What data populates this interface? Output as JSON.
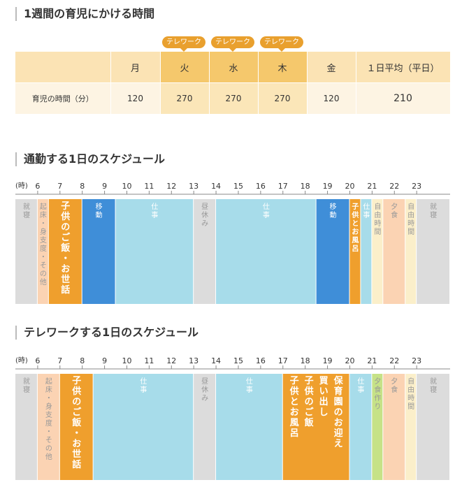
{
  "section1": {
    "title": "1週間の育児にかける時間"
  },
  "weekly_table": {
    "badge_label": "テレワーク",
    "days": [
      {
        "label": "月",
        "telework": false,
        "minutes": 120
      },
      {
        "label": "火",
        "telework": true,
        "minutes": 270
      },
      {
        "label": "水",
        "telework": true,
        "minutes": 270
      },
      {
        "label": "木",
        "telework": true,
        "minutes": 270
      },
      {
        "label": "金",
        "telework": false,
        "minutes": 120
      }
    ],
    "average_label": "１日平均（平日）",
    "average_value": 210,
    "row_label": "育児の時間（分）"
  },
  "colors": {
    "sleep": "#dcdcdc",
    "morning": "#fbd3b3",
    "childcare": "#ef9f2d",
    "commute": "#3f8ed8",
    "work": "#a7dcea",
    "lunch": "#dcdcdc",
    "free": "#fbefca",
    "dinner": "#fbd3b3",
    "cooking": "#c6e287",
    "text_light": "#999999",
    "text_dark": "#ffffff"
  },
  "chart_data": [
    {
      "type": "timeline",
      "title": "通勤する1日のスケジュール",
      "unit_label": "(時)",
      "hour_ticks": [
        6,
        7,
        8,
        9,
        10,
        11,
        12,
        13,
        14,
        15,
        16,
        17,
        18,
        19,
        20,
        21,
        22,
        23
      ],
      "blocks": [
        {
          "start": 5.0,
          "end": 6.0,
          "label": "就寝",
          "category": "sleep"
        },
        {
          "start": 6.0,
          "end": 6.5,
          "label": "起床・身支度・その他",
          "category": "morning"
        },
        {
          "start": 6.5,
          "end": 8.0,
          "label": "子供のご飯・お世話",
          "category": "childcare"
        },
        {
          "start": 8.0,
          "end": 9.5,
          "label": "移動",
          "category": "commute"
        },
        {
          "start": 9.5,
          "end": 13.0,
          "label": "仕事",
          "category": "work"
        },
        {
          "start": 13.0,
          "end": 14.0,
          "label": "昼休み",
          "category": "lunch"
        },
        {
          "start": 14.0,
          "end": 18.5,
          "label": "仕事",
          "category": "work"
        },
        {
          "start": 18.5,
          "end": 20.0,
          "label": "移動",
          "category": "commute"
        },
        {
          "start": 20.0,
          "end": 20.5,
          "label": "子供とお風呂",
          "category": "childcare"
        },
        {
          "start": 20.5,
          "end": 21.0,
          "label": "仕事",
          "category": "work"
        },
        {
          "start": 21.0,
          "end": 21.5,
          "label": "自由時間",
          "category": "free"
        },
        {
          "start": 21.5,
          "end": 22.5,
          "label": "夕食",
          "category": "dinner"
        },
        {
          "start": 22.5,
          "end": 23.0,
          "label": "自由時間",
          "category": "free"
        },
        {
          "start": 23.0,
          "end": 24.5,
          "label": "就寝",
          "category": "sleep"
        }
      ]
    },
    {
      "type": "timeline",
      "title": "テレワークする1日のスケジュール",
      "unit_label": "(時)",
      "hour_ticks": [
        6,
        7,
        8,
        9,
        10,
        11,
        12,
        13,
        14,
        15,
        16,
        17,
        18,
        19,
        20,
        21,
        22,
        23
      ],
      "blocks": [
        {
          "start": 5.0,
          "end": 6.0,
          "label": "就寝",
          "category": "sleep"
        },
        {
          "start": 6.0,
          "end": 7.0,
          "label": "起床・身支度・その他",
          "category": "morning"
        },
        {
          "start": 7.0,
          "end": 8.5,
          "label": "子供のご飯・お世話",
          "category": "childcare"
        },
        {
          "start": 8.5,
          "end": 13.0,
          "label": "仕事",
          "category": "work"
        },
        {
          "start": 13.0,
          "end": 14.0,
          "label": "昼休み",
          "category": "lunch"
        },
        {
          "start": 14.0,
          "end": 17.0,
          "label": "仕事",
          "category": "work"
        },
        {
          "start": 17.0,
          "end": 20.0,
          "label": "保育園のお迎え|買い出し|子供のご飯|子供とお風呂",
          "category": "childcare"
        },
        {
          "start": 20.0,
          "end": 21.0,
          "label": "仕事",
          "category": "work"
        },
        {
          "start": 21.0,
          "end": 21.5,
          "label": "夕食作り",
          "category": "cooking"
        },
        {
          "start": 21.5,
          "end": 22.5,
          "label": "夕食",
          "category": "dinner"
        },
        {
          "start": 22.5,
          "end": 23.0,
          "label": "自由時間",
          "category": "free"
        },
        {
          "start": 23.0,
          "end": 24.5,
          "label": "就寝",
          "category": "sleep"
        }
      ]
    }
  ]
}
